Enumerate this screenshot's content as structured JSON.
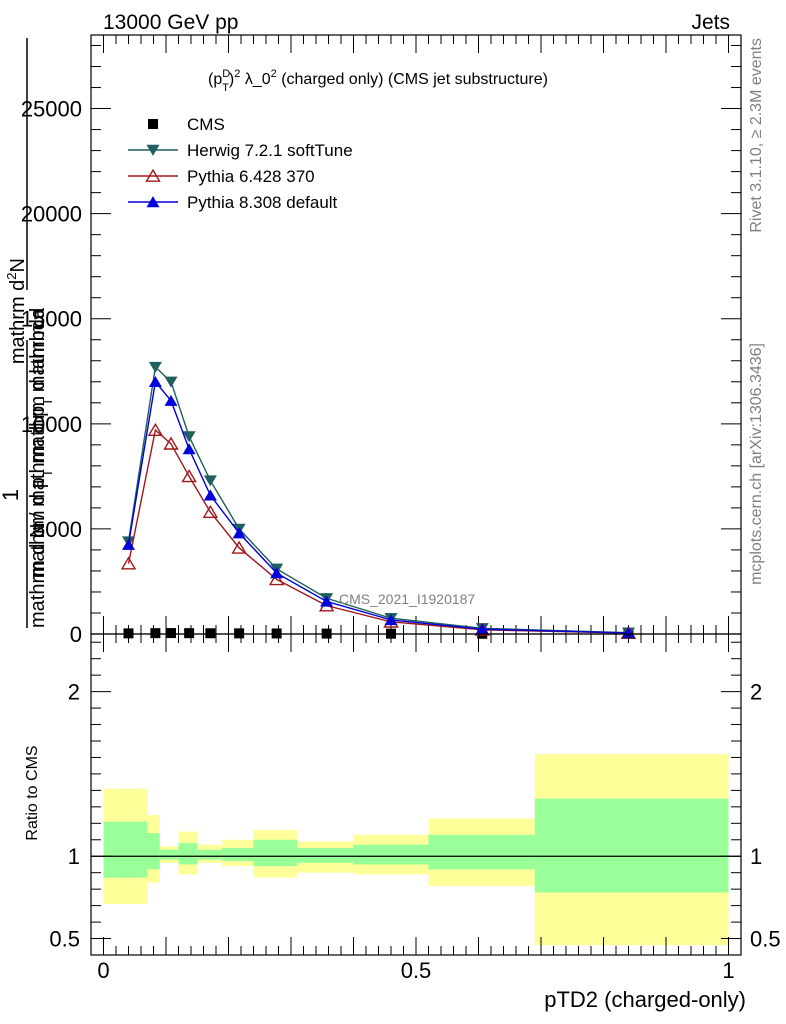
{
  "header": {
    "left": "13000 GeV pp",
    "right": "Jets"
  },
  "side_labels": {
    "rivet": "Rivet 3.1.10, ≥ 2.3M events",
    "mcplots": "mcplots.cern.ch [arXiv:1306.3436]"
  },
  "chart_data": [
    {
      "type": "line",
      "title": "(p_T^D)^2 λ_0^2 (charged only) (CMS jet substructure)",
      "title_parts": {
        "base": "(p",
        "sup_d": "D",
        "sub_t": "T",
        "close": ")",
        "sup_2": "2",
        "rest": " λ_0",
        "sup_2b": "2",
        "tail": " (charged only) (CMS jet substructure)"
      },
      "ylabel_top": "1",
      "ylabel_num": "mathrm d",
      "ylabel_num_sup": "2",
      "ylabel_num_tail": "N",
      "ylabel_den": "mathrm d p",
      "ylabel_den_sub": "T",
      "ylabel_den_tail": " mathrm d lambda",
      "ylabel_bottom": "mathrm d N / mathrm d p",
      "ylabel_bottom_sub": "T",
      "ylabel_bottom_tail": " mathrm d",
      "watermark": "CMS_2021_I1920187",
      "xlim": [
        -0.02,
        1.02
      ],
      "ylim": [
        0,
        28500
      ],
      "yticks": [
        0,
        5000,
        10000,
        15000,
        20000,
        25000
      ],
      "ytick_labels": [
        "0",
        "5000",
        "10000",
        "15000",
        "20000",
        "25000"
      ],
      "legend_position": "top-left",
      "series": [
        {
          "name": "CMS",
          "color": "#000000",
          "marker": "square",
          "x": [
            0.04,
            0.083,
            0.108,
            0.137,
            0.171,
            0.217,
            0.277,
            0.357,
            0.46,
            0.606,
            0.84
          ],
          "y": [
            30,
            40,
            45,
            40,
            35,
            30,
            25,
            20,
            15,
            10,
            5
          ]
        },
        {
          "name": "Herwig 7.2.1 softTune",
          "color": "#1f5f5f",
          "marker": "triangle-down",
          "x": [
            0.04,
            0.083,
            0.108,
            0.137,
            0.171,
            0.217,
            0.277,
            0.357,
            0.46,
            0.606,
            0.84
          ],
          "y": [
            4400,
            12700,
            12000,
            9400,
            7300,
            5000,
            3100,
            1700,
            750,
            270,
            60
          ]
        },
        {
          "name": "Pythia 6.428 370",
          "color": "#a0171c",
          "marker": "triangle-open",
          "x": [
            0.04,
            0.083,
            0.108,
            0.137,
            0.171,
            0.217,
            0.277,
            0.357,
            0.46,
            0.606,
            0.84
          ],
          "y": [
            3350,
            9700,
            9050,
            7500,
            5800,
            4100,
            2600,
            1350,
            580,
            200,
            45
          ]
        },
        {
          "name": "Pythia 8.308 default",
          "color": "#0000dd",
          "marker": "triangle-up",
          "x": [
            0.04,
            0.083,
            0.108,
            0.137,
            0.171,
            0.217,
            0.277,
            0.357,
            0.46,
            0.606,
            0.84
          ],
          "y": [
            4250,
            12000,
            11100,
            8800,
            6600,
            4800,
            2900,
            1550,
            670,
            230,
            52
          ]
        }
      ]
    },
    {
      "type": "area",
      "ylabel": "Ratio to CMS",
      "xlabel": "pTD2 (charged-only)",
      "xlim": [
        -0.02,
        1.02
      ],
      "ylim": [
        0.4,
        2.35
      ],
      "xticks": [
        0,
        0.5,
        1
      ],
      "xtick_labels": [
        "0",
        "0.5",
        "1"
      ],
      "yticks": [
        0.5,
        1,
        2
      ],
      "ytick_labels": [
        "0.5",
        "1",
        "2"
      ],
      "reference_line": 1,
      "bands": {
        "yellow_color": "#ffff99",
        "green_color": "#99ff99",
        "bins": [
          {
            "x0": 0.0,
            "x1": 0.07,
            "ylo": 0.71,
            "yhi": 1.41,
            "glo": 0.87,
            "ghi": 1.21
          },
          {
            "x0": 0.07,
            "x1": 0.09,
            "ylo": 0.84,
            "yhi": 1.25,
            "glo": 0.92,
            "ghi": 1.14
          },
          {
            "x0": 0.09,
            "x1": 0.12,
            "ylo": 0.96,
            "yhi": 1.06,
            "glo": 0.98,
            "ghi": 1.04
          },
          {
            "x0": 0.12,
            "x1": 0.15,
            "ylo": 0.89,
            "yhi": 1.15,
            "glo": 0.95,
            "ghi": 1.08
          },
          {
            "x0": 0.15,
            "x1": 0.19,
            "ylo": 0.96,
            "yhi": 1.07,
            "glo": 0.98,
            "ghi": 1.04
          },
          {
            "x0": 0.19,
            "x1": 0.24,
            "ylo": 0.94,
            "yhi": 1.1,
            "glo": 0.97,
            "ghi": 1.05
          },
          {
            "x0": 0.24,
            "x1": 0.31,
            "ylo": 0.87,
            "yhi": 1.16,
            "glo": 0.94,
            "ghi": 1.1
          },
          {
            "x0": 0.31,
            "x1": 0.4,
            "ylo": 0.9,
            "yhi": 1.09,
            "glo": 0.96,
            "ghi": 1.05
          },
          {
            "x0": 0.4,
            "x1": 0.52,
            "ylo": 0.89,
            "yhi": 1.13,
            "glo": 0.95,
            "ghi": 1.07
          },
          {
            "x0": 0.52,
            "x1": 0.69,
            "ylo": 0.82,
            "yhi": 1.23,
            "glo": 0.92,
            "ghi": 1.13
          },
          {
            "x0": 0.69,
            "x1": 1.0,
            "ylo": 0.46,
            "yhi": 1.62,
            "glo": 0.78,
            "ghi": 1.35
          }
        ]
      }
    }
  ]
}
